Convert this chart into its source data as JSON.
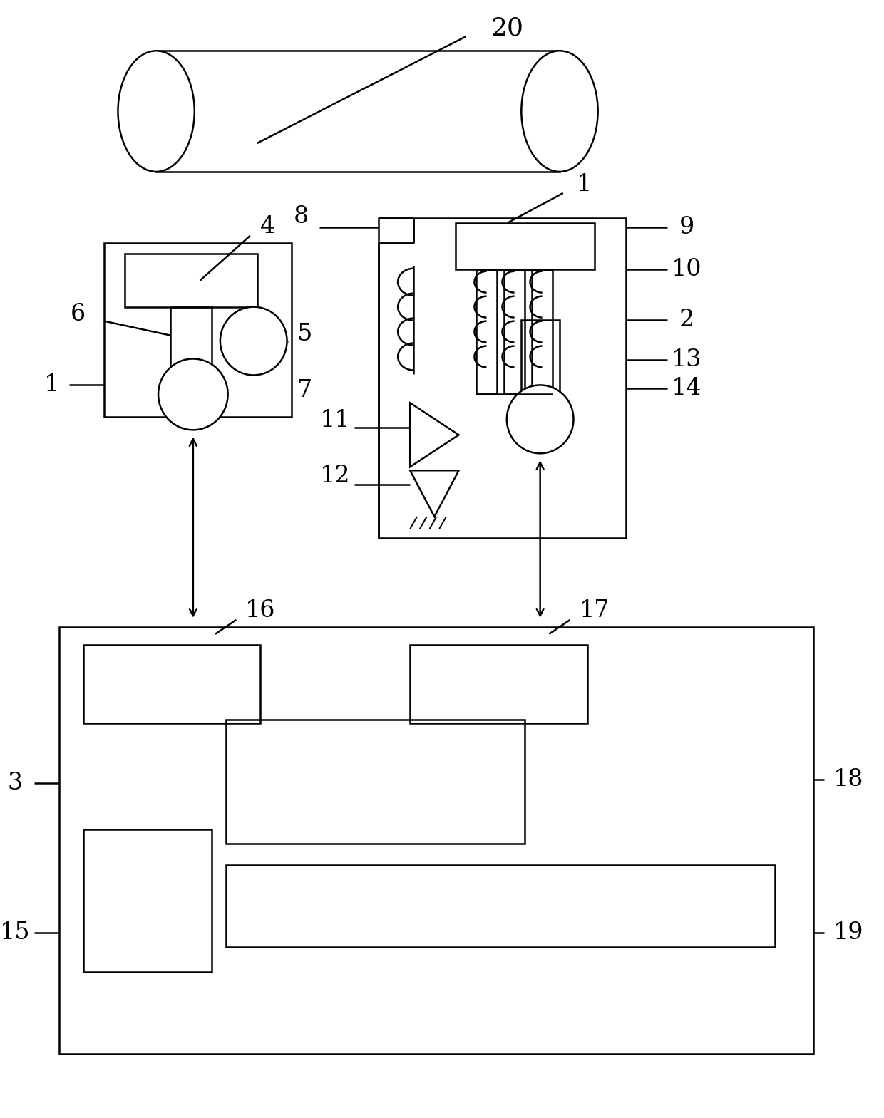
{
  "bg_color": "#ffffff",
  "lc": "#000000",
  "lw": 1.8,
  "fig_w": 12.4,
  "fig_h": 15.69
}
